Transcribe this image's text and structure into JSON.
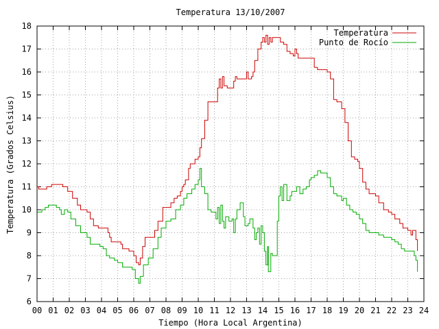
{
  "chart_data": {
    "type": "line",
    "title": "Temperatura 13/10/2007",
    "xlabel": "Tiempo (Hora Local Argentina)",
    "ylabel": "Temperatura (Grados Celsius)",
    "xlim": [
      0,
      24
    ],
    "ylim": [
      6,
      18
    ],
    "x_ticks": [
      "00",
      "01",
      "02",
      "03",
      "04",
      "05",
      "06",
      "07",
      "08",
      "09",
      "10",
      "11",
      "12",
      "13",
      "14",
      "15",
      "16",
      "17",
      "18",
      "19",
      "20",
      "21",
      "22",
      "23",
      "24"
    ],
    "y_ticks": [
      "6",
      "7",
      "8",
      "9",
      "10",
      "11",
      "12",
      "13",
      "14",
      "15",
      "16",
      "17",
      "18"
    ],
    "grid": true,
    "legend_position": "top-right",
    "series": [
      {
        "name": "Temperatura",
        "color": "#cc0000",
        "points": [
          [
            0.0,
            11.0
          ],
          [
            0.1,
            10.9
          ],
          [
            0.5,
            10.9
          ],
          [
            0.6,
            11.0
          ],
          [
            0.8,
            11.0
          ],
          [
            0.9,
            11.1
          ],
          [
            1.3,
            11.1
          ],
          [
            1.6,
            11.0
          ],
          [
            1.9,
            10.8
          ],
          [
            2.2,
            10.5
          ],
          [
            2.5,
            10.2
          ],
          [
            2.7,
            10.0
          ],
          [
            3.1,
            9.9
          ],
          [
            3.3,
            9.6
          ],
          [
            3.5,
            9.3
          ],
          [
            3.8,
            9.2
          ],
          [
            4.2,
            9.2
          ],
          [
            4.4,
            9.0
          ],
          [
            4.5,
            8.8
          ],
          [
            4.6,
            8.6
          ],
          [
            5.0,
            8.6
          ],
          [
            5.2,
            8.5
          ],
          [
            5.3,
            8.3
          ],
          [
            5.5,
            8.3
          ],
          [
            5.7,
            8.2
          ],
          [
            5.9,
            8.2
          ],
          [
            6.0,
            8.0
          ],
          [
            6.15,
            7.7
          ],
          [
            6.3,
            7.6
          ],
          [
            6.4,
            7.9
          ],
          [
            6.55,
            8.4
          ],
          [
            6.7,
            8.8
          ],
          [
            7.1,
            8.8
          ],
          [
            7.3,
            9.1
          ],
          [
            7.5,
            9.5
          ],
          [
            7.8,
            10.1
          ],
          [
            8.2,
            10.1
          ],
          [
            8.3,
            10.3
          ],
          [
            8.5,
            10.5
          ],
          [
            8.7,
            10.6
          ],
          [
            8.9,
            10.8
          ],
          [
            9.0,
            11.0
          ],
          [
            9.1,
            11.1
          ],
          [
            9.2,
            11.3
          ],
          [
            9.4,
            11.8
          ],
          [
            9.5,
            12.0
          ],
          [
            9.8,
            12.2
          ],
          [
            10.0,
            12.3
          ],
          [
            10.1,
            12.7
          ],
          [
            10.2,
            13.1
          ],
          [
            10.4,
            13.9
          ],
          [
            10.6,
            14.7
          ],
          [
            11.0,
            14.7
          ],
          [
            11.2,
            15.3
          ],
          [
            11.3,
            15.7
          ],
          [
            11.4,
            15.3
          ],
          [
            11.5,
            15.8
          ],
          [
            11.6,
            15.4
          ],
          [
            11.8,
            15.3
          ],
          [
            12.0,
            15.3
          ],
          [
            12.2,
            15.6
          ],
          [
            12.3,
            15.8
          ],
          [
            12.4,
            15.7
          ],
          [
            12.6,
            15.7
          ],
          [
            12.9,
            15.7
          ],
          [
            13.0,
            16.0
          ],
          [
            13.1,
            15.7
          ],
          [
            13.3,
            15.8
          ],
          [
            13.4,
            16.0
          ],
          [
            13.5,
            16.5
          ],
          [
            13.7,
            17.0
          ],
          [
            13.9,
            17.3
          ],
          [
            14.0,
            17.5
          ],
          [
            14.1,
            17.3
          ],
          [
            14.2,
            17.6
          ],
          [
            14.3,
            17.2
          ],
          [
            14.4,
            17.5
          ],
          [
            14.5,
            17.3
          ],
          [
            14.6,
            17.5
          ],
          [
            15.0,
            17.5
          ],
          [
            15.1,
            17.3
          ],
          [
            15.3,
            17.2
          ],
          [
            15.5,
            16.9
          ],
          [
            15.7,
            16.8
          ],
          [
            15.9,
            16.7
          ],
          [
            16.0,
            17.0
          ],
          [
            16.1,
            16.8
          ],
          [
            16.2,
            16.6
          ],
          [
            16.8,
            16.6
          ],
          [
            17.0,
            16.6
          ],
          [
            17.2,
            16.2
          ],
          [
            17.4,
            16.1
          ],
          [
            17.8,
            16.1
          ],
          [
            18.0,
            16.0
          ],
          [
            18.2,
            15.7
          ],
          [
            18.4,
            14.8
          ],
          [
            18.6,
            14.7
          ],
          [
            18.9,
            14.4
          ],
          [
            19.1,
            13.8
          ],
          [
            19.3,
            13.0
          ],
          [
            19.5,
            12.3
          ],
          [
            19.7,
            12.2
          ],
          [
            19.9,
            12.1
          ],
          [
            20.0,
            11.8
          ],
          [
            20.2,
            11.2
          ],
          [
            20.4,
            10.9
          ],
          [
            20.6,
            10.7
          ],
          [
            21.0,
            10.6
          ],
          [
            21.2,
            10.3
          ],
          [
            21.5,
            10.0
          ],
          [
            21.8,
            9.9
          ],
          [
            22.0,
            9.8
          ],
          [
            22.2,
            9.6
          ],
          [
            22.5,
            9.4
          ],
          [
            22.7,
            9.2
          ],
          [
            23.0,
            9.1
          ],
          [
            23.2,
            8.9
          ],
          [
            23.3,
            9.1
          ],
          [
            23.5,
            8.7
          ],
          [
            23.6,
            8.2
          ]
        ]
      },
      {
        "name": "Punto de Rocío",
        "color": "#00aa00",
        "points": [
          [
            0.0,
            9.9
          ],
          [
            0.3,
            10.0
          ],
          [
            0.5,
            10.1
          ],
          [
            0.7,
            10.2
          ],
          [
            1.0,
            10.2
          ],
          [
            1.2,
            10.1
          ],
          [
            1.4,
            10.0
          ],
          [
            1.5,
            9.8
          ],
          [
            1.7,
            10.0
          ],
          [
            1.9,
            9.9
          ],
          [
            2.1,
            9.6
          ],
          [
            2.4,
            9.3
          ],
          [
            2.7,
            9.0
          ],
          [
            2.9,
            9.0
          ],
          [
            3.1,
            8.8
          ],
          [
            3.3,
            8.5
          ],
          [
            3.6,
            8.5
          ],
          [
            3.9,
            8.4
          ],
          [
            4.1,
            8.3
          ],
          [
            4.3,
            8.0
          ],
          [
            4.5,
            7.9
          ],
          [
            4.8,
            7.8
          ],
          [
            5.0,
            7.7
          ],
          [
            5.3,
            7.5
          ],
          [
            5.6,
            7.5
          ],
          [
            5.9,
            7.4
          ],
          [
            6.1,
            7.0
          ],
          [
            6.3,
            6.8
          ],
          [
            6.4,
            7.1
          ],
          [
            6.6,
            7.6
          ],
          [
            6.9,
            7.9
          ],
          [
            7.2,
            8.3
          ],
          [
            7.5,
            8.8
          ],
          [
            7.7,
            9.2
          ],
          [
            8.0,
            9.5
          ],
          [
            8.3,
            9.6
          ],
          [
            8.6,
            10.0
          ],
          [
            8.9,
            10.2
          ],
          [
            9.1,
            10.5
          ],
          [
            9.3,
            10.7
          ],
          [
            9.6,
            10.9
          ],
          [
            9.8,
            11.1
          ],
          [
            10.0,
            11.3
          ],
          [
            10.1,
            11.8
          ],
          [
            10.2,
            11.0
          ],
          [
            10.4,
            10.7
          ],
          [
            10.6,
            10.0
          ],
          [
            10.8,
            9.9
          ],
          [
            11.0,
            9.9
          ],
          [
            11.1,
            9.6
          ],
          [
            11.2,
            10.1
          ],
          [
            11.3,
            9.4
          ],
          [
            11.4,
            10.2
          ],
          [
            11.5,
            9.5
          ],
          [
            11.6,
            9.2
          ],
          [
            11.7,
            9.7
          ],
          [
            11.9,
            9.5
          ],
          [
            12.1,
            9.6
          ],
          [
            12.2,
            9.0
          ],
          [
            12.3,
            9.6
          ],
          [
            12.4,
            10.0
          ],
          [
            12.6,
            10.3
          ],
          [
            12.8,
            9.7
          ],
          [
            12.9,
            9.3
          ],
          [
            13.1,
            9.4
          ],
          [
            13.2,
            9.6
          ],
          [
            13.4,
            9.2
          ],
          [
            13.5,
            8.7
          ],
          [
            13.6,
            9.0
          ],
          [
            13.7,
            9.2
          ],
          [
            13.8,
            8.5
          ],
          [
            13.9,
            9.3
          ],
          [
            14.0,
            9.0
          ],
          [
            14.1,
            8.2
          ],
          [
            14.2,
            7.6
          ],
          [
            14.3,
            8.4
          ],
          [
            14.35,
            7.3
          ],
          [
            14.5,
            8.1
          ],
          [
            14.6,
            8.0
          ],
          [
            14.7,
            8.0
          ],
          [
            14.8,
            8.0
          ],
          [
            14.9,
            9.5
          ],
          [
            15.0,
            10.6
          ],
          [
            15.1,
            11.0
          ],
          [
            15.2,
            10.4
          ],
          [
            15.3,
            11.1
          ],
          [
            15.5,
            10.4
          ],
          [
            15.7,
            10.6
          ],
          [
            15.8,
            10.8
          ],
          [
            16.0,
            10.8
          ],
          [
            16.1,
            11.0
          ],
          [
            16.3,
            10.7
          ],
          [
            16.5,
            10.9
          ],
          [
            16.7,
            11.0
          ],
          [
            16.9,
            11.3
          ],
          [
            17.0,
            11.4
          ],
          [
            17.2,
            11.5
          ],
          [
            17.4,
            11.7
          ],
          [
            17.6,
            11.6
          ],
          [
            17.8,
            11.6
          ],
          [
            18.0,
            11.4
          ],
          [
            18.2,
            11.0
          ],
          [
            18.4,
            10.7
          ],
          [
            18.6,
            10.6
          ],
          [
            18.9,
            10.4
          ],
          [
            19.0,
            10.5
          ],
          [
            19.2,
            10.2
          ],
          [
            19.4,
            10.0
          ],
          [
            19.6,
            9.9
          ],
          [
            19.8,
            9.8
          ],
          [
            20.0,
            9.6
          ],
          [
            20.2,
            9.4
          ],
          [
            20.4,
            9.1
          ],
          [
            20.6,
            9.0
          ],
          [
            20.8,
            9.0
          ],
          [
            21.0,
            9.0
          ],
          [
            21.2,
            8.9
          ],
          [
            21.5,
            8.8
          ],
          [
            21.8,
            8.8
          ],
          [
            22.0,
            8.7
          ],
          [
            22.2,
            8.6
          ],
          [
            22.4,
            8.5
          ],
          [
            22.6,
            8.3
          ],
          [
            22.8,
            8.2
          ],
          [
            23.0,
            8.2
          ],
          [
            23.2,
            8.2
          ],
          [
            23.4,
            8.0
          ],
          [
            23.5,
            7.8
          ],
          [
            23.6,
            7.3
          ]
        ]
      }
    ]
  }
}
